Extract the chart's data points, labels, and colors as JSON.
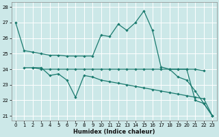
{
  "xlabel": "Humidex (Indice chaleur)",
  "xlim_min": -0.5,
  "xlim_max": 23.5,
  "ylim_min": 20.7,
  "ylim_max": 28.3,
  "yticks": [
    21,
    22,
    23,
    24,
    25,
    26,
    27,
    28
  ],
  "xticks": [
    0,
    1,
    2,
    3,
    4,
    5,
    6,
    7,
    8,
    9,
    10,
    11,
    12,
    13,
    14,
    15,
    16,
    17,
    18,
    19,
    20,
    21,
    22,
    23
  ],
  "bg_color": "#cce8e8",
  "line_color": "#1a7a6e",
  "grid_color": "#ffffff",
  "line1_x": [
    0,
    1,
    2,
    3,
    4,
    5,
    6,
    7,
    8,
    9,
    10,
    11,
    12,
    13,
    14,
    15,
    16,
    17,
    18,
    19,
    20,
    21,
    22,
    23
  ],
  "line1_y": [
    27.0,
    25.2,
    25.1,
    25.0,
    24.9,
    24.9,
    24.85,
    24.85,
    24.85,
    24.85,
    26.2,
    26.1,
    26.9,
    26.5,
    27.0,
    27.75,
    26.5,
    24.15,
    24.0,
    24.0,
    24.0,
    22.0,
    21.8,
    21.0
  ],
  "line2_x": [
    1,
    2,
    3,
    4,
    5,
    6,
    7,
    8,
    9,
    10,
    11,
    12,
    13,
    14,
    15,
    16,
    17,
    18,
    19,
    20,
    21,
    22,
    23
  ],
  "line2_y": [
    24.1,
    24.1,
    24.0,
    24.0,
    24.0,
    24.0,
    24.0,
    24.0,
    24.0,
    24.0,
    24.0,
    24.0,
    24.0,
    24.0,
    24.0,
    24.0,
    24.0,
    24.0,
    23.5,
    23.3,
    22.6,
    21.8,
    21.0
  ],
  "line3_x": [
    2,
    3,
    4,
    5,
    6,
    7,
    8,
    9,
    10,
    11,
    12,
    13,
    14,
    15,
    16,
    17,
    18,
    19,
    20,
    21,
    22,
    23
  ],
  "line3_y": [
    24.1,
    24.1,
    23.6,
    23.7,
    23.3,
    22.2,
    23.6,
    23.5,
    23.3,
    23.2,
    23.1,
    23.0,
    22.9,
    22.8,
    22.7,
    22.6,
    22.5,
    22.4,
    22.3,
    22.2,
    22.1,
    21.0
  ],
  "line4_x": [
    18,
    19,
    20,
    21,
    22
  ],
  "line4_y": [
    24.0,
    24.0,
    24.0,
    24.0,
    23.9
  ]
}
